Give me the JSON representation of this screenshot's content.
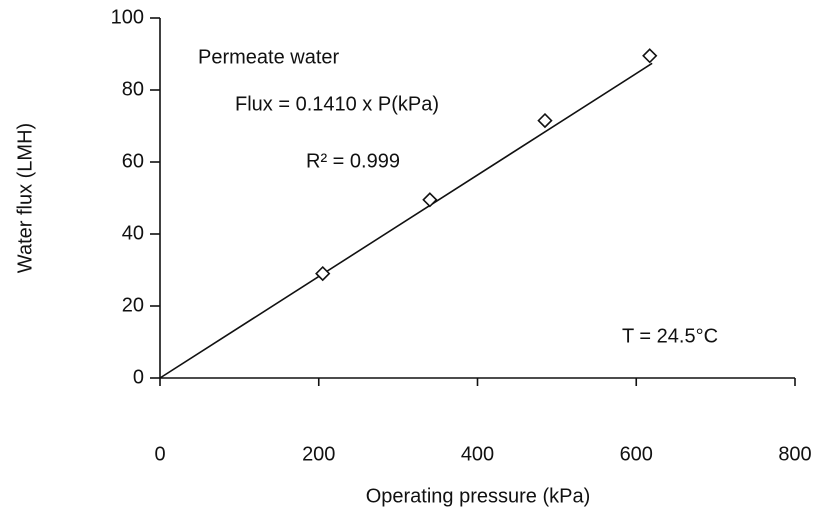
{
  "chart_data": {
    "type": "scatter",
    "x_label": "Operating pressure (kPa)",
    "y_label": "Water flux (LMH)",
    "annotations": [
      "Permeate water",
      "Flux = 0.1410 x P(kPa)",
      "R² = 0.999",
      "T = 24.5°C"
    ],
    "x": [
      205,
      340,
      485,
      617
    ],
    "values": [
      29,
      49.5,
      71.5,
      89.5
    ],
    "color": "#111111",
    "fit_line": {
      "x": [
        0,
        620
      ],
      "values": [
        0,
        87.4
      ]
    },
    "xlim": [
      0,
      800
    ],
    "ylim": [
      0,
      100
    ],
    "xticks": [
      0,
      200,
      400,
      600,
      800
    ],
    "yticks": [
      0,
      20,
      40,
      60,
      80,
      100
    ]
  }
}
